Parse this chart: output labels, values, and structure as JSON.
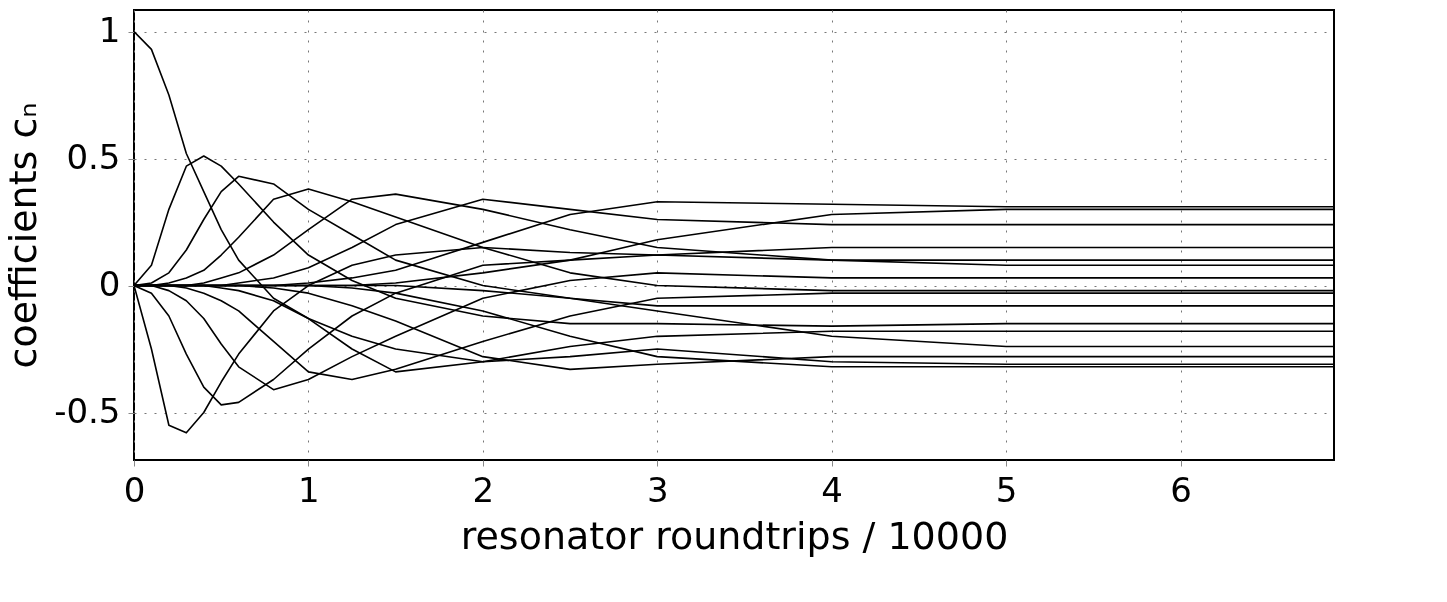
{
  "chart_data": {
    "type": "line",
    "xlabel": "resonator roundtrips / 10000",
    "ylabel": "coefficients cₙ",
    "xlim": [
      0,
      6.88
    ],
    "ylim": [
      -0.687,
      1.085
    ],
    "xticks": [
      0,
      1,
      2,
      3,
      4,
      5,
      6
    ],
    "yticks": [
      -0.5,
      0,
      0.5,
      1
    ],
    "grid": true,
    "legend": false,
    "line_style": "solid",
    "x": [
      0,
      0.1,
      0.2,
      0.3,
      0.4,
      0.5,
      0.6,
      0.8,
      1,
      1.25,
      1.5,
      2,
      2.5,
      3,
      4,
      5,
      6,
      6.88
    ],
    "series": [
      {
        "color": "#000000",
        "values": [
          1,
          0.93,
          0.75,
          0.52,
          0.37,
          0.22,
          0.1,
          -0.05,
          -0.13,
          -0.2,
          -0.25,
          -0.3,
          -0.28,
          -0.25,
          -0.3,
          -0.31,
          -0.31,
          -0.31
        ]
      },
      {
        "color": "#000000",
        "values": [
          0,
          -0.25,
          -0.55,
          -0.58,
          -0.5,
          -0.38,
          -0.27,
          -0.1,
          0.0,
          0.08,
          0.12,
          0.15,
          0.13,
          0.12,
          0.15,
          0.15,
          0.15,
          0.15
        ]
      },
      {
        "color": "#000000",
        "values": [
          0,
          0.08,
          0.3,
          0.47,
          0.51,
          0.47,
          0.4,
          0.25,
          0.12,
          0.02,
          -0.05,
          -0.12,
          -0.15,
          -0.15,
          -0.16,
          -0.15,
          -0.15,
          -0.15
        ]
      },
      {
        "color": "#000000",
        "values": [
          0,
          -0.03,
          -0.12,
          -0.27,
          -0.4,
          -0.47,
          -0.46,
          -0.37,
          -0.25,
          -0.12,
          -0.03,
          0.08,
          0.1,
          0.12,
          0.1,
          0.08,
          0.08,
          0.08
        ]
      },
      {
        "color": "#000000",
        "values": [
          0,
          0.01,
          0.05,
          0.14,
          0.26,
          0.37,
          0.43,
          0.4,
          0.3,
          0.2,
          0.1,
          0.0,
          -0.05,
          -0.08,
          -0.08,
          -0.08,
          -0.08,
          -0.08
        ]
      },
      {
        "color": "#000000",
        "values": [
          0,
          0,
          -0.02,
          -0.06,
          -0.13,
          -0.23,
          -0.32,
          -0.41,
          -0.37,
          -0.28,
          -0.2,
          -0.05,
          0.02,
          0.05,
          0.03,
          0.03,
          0.03,
          0.03
        ]
      },
      {
        "color": "#000000",
        "values": [
          0,
          0,
          0.01,
          0.03,
          0.06,
          0.12,
          0.19,
          0.34,
          0.38,
          0.33,
          0.27,
          0.15,
          0.05,
          0.0,
          -0.02,
          -0.02,
          -0.02,
          -0.02
        ]
      },
      {
        "color": "#000000",
        "values": [
          0,
          0,
          0,
          -0.01,
          -0.03,
          -0.06,
          -0.1,
          -0.22,
          -0.34,
          -0.37,
          -0.33,
          -0.22,
          -0.12,
          -0.05,
          -0.03,
          -0.03,
          -0.03,
          -0.03
        ]
      },
      {
        "color": "#000000",
        "values": [
          0,
          0,
          0,
          0,
          0.01,
          0.03,
          0.05,
          0.12,
          0.22,
          0.34,
          0.36,
          0.3,
          0.22,
          0.15,
          0.1,
          0.1,
          0.1,
          0.1
        ]
      },
      {
        "color": "#000000",
        "values": [
          0,
          0,
          0,
          0,
          0,
          -0.01,
          -0.02,
          -0.06,
          -0.13,
          -0.25,
          -0.34,
          -0.3,
          -0.24,
          -0.2,
          -0.18,
          -0.18,
          -0.18,
          -0.18
        ]
      },
      {
        "color": "#000000",
        "values": [
          0,
          0,
          0,
          0,
          0,
          0,
          0.01,
          0.03,
          0.07,
          0.15,
          0.24,
          0.34,
          0.3,
          0.26,
          0.24,
          0.24,
          0.24,
          0.24
        ]
      },
      {
        "color": "#000000",
        "values": [
          0,
          0,
          0,
          0,
          0,
          0,
          0,
          -0.01,
          -0.03,
          -0.08,
          -0.14,
          -0.28,
          -0.33,
          -0.31,
          -0.28,
          -0.28,
          -0.28,
          -0.28
        ]
      },
      {
        "color": "#000000",
        "values": [
          0,
          0,
          0,
          0,
          0,
          0,
          0,
          0,
          0.01,
          0.03,
          0.06,
          0.17,
          0.28,
          0.33,
          0.32,
          0.31,
          0.31,
          0.31
        ]
      },
      {
        "color": "#000000",
        "values": [
          0,
          0,
          0,
          0,
          0,
          0,
          0,
          0,
          0,
          -0.01,
          -0.03,
          -0.1,
          -0.2,
          -0.28,
          -0.32,
          -0.32,
          -0.32,
          -0.32
        ]
      },
      {
        "color": "#000000",
        "values": [
          0,
          0,
          0,
          0,
          0,
          0,
          0,
          0,
          0,
          0,
          0.01,
          0.05,
          0.1,
          0.18,
          0.28,
          0.3,
          0.3,
          0.3
        ]
      },
      {
        "color": "#000000",
        "values": [
          0,
          0,
          0,
          0,
          0,
          0,
          0,
          0,
          0,
          0,
          0,
          -0.02,
          -0.05,
          -0.1,
          -0.2,
          -0.24,
          -0.24,
          -0.24
        ]
      }
    ]
  }
}
